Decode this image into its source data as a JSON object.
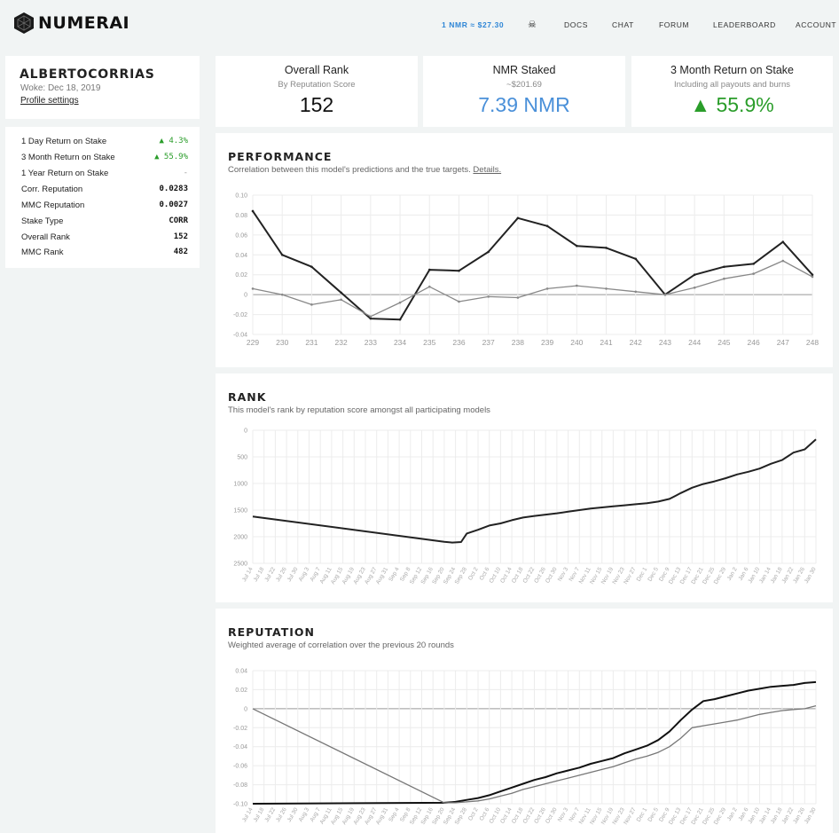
{
  "brand": {
    "name": "NUMERAI"
  },
  "nav": {
    "price": "1 NMR ≈ $27.30",
    "items": [
      "DOCS",
      "CHAT",
      "FORUM",
      "LEADERBOARD",
      "ACCOUNT"
    ]
  },
  "profile": {
    "name": "ALBERTOCORRIAS",
    "woke": "Woke: Dec 18, 2019",
    "settings": "Profile settings"
  },
  "stats": [
    {
      "label": "1 Day Return on Stake",
      "value": "▲ 4.3%",
      "tone": "green"
    },
    {
      "label": "3 Month Return on Stake",
      "value": "▲ 55.9%",
      "tone": "green"
    },
    {
      "label": "1 Year Return on Stake",
      "value": "-",
      "tone": "muted"
    },
    {
      "label": "Corr. Reputation",
      "value": "0.0283",
      "tone": "normal"
    },
    {
      "label": "MMC Reputation",
      "value": "0.0027",
      "tone": "normal"
    },
    {
      "label": "Stake Type",
      "value": "CORR",
      "tone": "normal"
    },
    {
      "label": "Overall Rank",
      "value": "152",
      "tone": "normal"
    },
    {
      "label": "MMC Rank",
      "value": "482",
      "tone": "normal"
    }
  ],
  "kpis": [
    {
      "title": "Overall Rank",
      "sub": "By Reputation Score",
      "value": "152",
      "color": "#111111"
    },
    {
      "title": "NMR Staked",
      "sub": "~$201.69",
      "value": "7.39 NMR",
      "color": "#4a90d9"
    },
    {
      "title": "3 Month Return on Stake",
      "sub": "Including all payouts and burns",
      "value": "▲ 55.9%",
      "color": "#2a9d2a"
    }
  ],
  "performance": {
    "title": "PERFORMANCE",
    "subtitle": "Correlation between this model's predictions and the true targets.",
    "details": "Details."
  },
  "rank": {
    "title": "RANK",
    "subtitle": "This model's rank by reputation score amongst all participating models"
  },
  "reputation": {
    "title": "REPUTATION",
    "subtitle": "Weighted average of correlation over the previous 20 rounds"
  },
  "chart_data": [
    {
      "type": "line",
      "name": "performance",
      "x": [
        229,
        230,
        231,
        232,
        233,
        234,
        235,
        236,
        237,
        238,
        239,
        240,
        241,
        242,
        243,
        244,
        245,
        246,
        247,
        248
      ],
      "ylim": [
        -0.04,
        0.1
      ],
      "yticks": [
        "0.10",
        "0.08",
        "0.06",
        "0.04",
        "0.02",
        "0",
        "-0.02",
        "-0.04"
      ],
      "xticks": [
        "229",
        "230",
        "231",
        "232",
        "233",
        "234",
        "235",
        "236",
        "237",
        "238",
        "239",
        "240",
        "241",
        "242",
        "243",
        "244",
        "245",
        "246",
        "247",
        "248"
      ],
      "series": [
        {
          "color": "#222222",
          "values": [
            0.084,
            0.04,
            0.028,
            0.002,
            -0.024,
            -0.025,
            0.025,
            0.024,
            0.043,
            0.077,
            0.069,
            0.049,
            0.047,
            0.036,
            0.0,
            0.02,
            0.028,
            0.031,
            0.053,
            0.02
          ]
        },
        {
          "color": "#888888",
          "values": [
            0.006,
            0.0,
            -0.01,
            -0.005,
            -0.022,
            -0.008,
            0.008,
            -0.007,
            -0.002,
            -0.003,
            0.006,
            0.009,
            0.006,
            0.003,
            0.0,
            0.007,
            0.016,
            0.021,
            0.034,
            0.018
          ]
        }
      ]
    },
    {
      "type": "line",
      "name": "rank",
      "ylim": [
        0,
        2500
      ],
      "reversed": true,
      "yticks": [
        "0",
        "500",
        "1000",
        "1500",
        "2000",
        "2500"
      ],
      "xticks": [
        "Jul 14",
        "Jul 18",
        "Jul 22",
        "Jul 26",
        "Jul 30",
        "Aug 3",
        "Aug 7",
        "Aug 11",
        "Aug 15",
        "Aug 19",
        "Aug 23",
        "Aug 27",
        "Aug 31",
        "Sep 4",
        "Sep 8",
        "Sep 12",
        "Sep 16",
        "Sep 20",
        "Sep 24",
        "Sep 28",
        "Oct 2",
        "Oct 6",
        "Oct 10",
        "Oct 14",
        "Oct 18",
        "Oct 22",
        "Oct 26",
        "Oct 30",
        "Nov 3",
        "Nov 7",
        "Nov 11",
        "Nov 15",
        "Nov 19",
        "Nov 23",
        "Nov 27",
        "Dec 1",
        "Dec 5",
        "Dec 9",
        "Dec 13",
        "Dec 17",
        "Dec 21",
        "Dec 25",
        "Dec 29",
        "Jan 2",
        "Jan 6",
        "Jan 10",
        "Jan 14",
        "Jan 18",
        "Jan 22",
        "Jan 26",
        "Jan 30"
      ],
      "series": [
        {
          "color": "#222222",
          "x": [
            0,
            17,
            17.7,
            18.5,
            19,
            20,
            21,
            22,
            23,
            24,
            25,
            26,
            27,
            28,
            29,
            30,
            31,
            32,
            33,
            34,
            35,
            36,
            37,
            38,
            39,
            40,
            41,
            42,
            43,
            44,
            45,
            46,
            47,
            48,
            49,
            50
          ],
          "values": [
            1620,
            2095,
            2110,
            2100,
            1940,
            1870,
            1790,
            1750,
            1690,
            1640,
            1610,
            1585,
            1560,
            1530,
            1500,
            1470,
            1450,
            1430,
            1410,
            1390,
            1370,
            1340,
            1290,
            1180,
            1080,
            1010,
            960,
            900,
            830,
            780,
            720,
            630,
            560,
            420,
            360,
            170
          ]
        }
      ]
    },
    {
      "type": "line",
      "name": "reputation",
      "ylim": [
        -0.1,
        0.04
      ],
      "yticks": [
        "0.04",
        "0.02",
        "0",
        "-0.02",
        "-0.04",
        "-0.06",
        "-0.08",
        "-0.10"
      ],
      "xticks": [
        "Jul 14",
        "Jul 18",
        "Jul 22",
        "Jul 26",
        "Jul 30",
        "Aug 3",
        "Aug 7",
        "Aug 11",
        "Aug 15",
        "Aug 19",
        "Aug 23",
        "Aug 27",
        "Aug 31",
        "Sep 4",
        "Sep 8",
        "Sep 12",
        "Sep 16",
        "Sep 20",
        "Sep 24",
        "Sep 28",
        "Oct 2",
        "Oct 6",
        "Oct 10",
        "Oct 14",
        "Oct 18",
        "Oct 22",
        "Oct 26",
        "Oct 30",
        "Nov 3",
        "Nov 7",
        "Nov 11",
        "Nov 15",
        "Nov 19",
        "Nov 23",
        "Nov 27",
        "Dec 1",
        "Dec 5",
        "Dec 9",
        "Dec 13",
        "Dec 17",
        "Dec 21",
        "Dec 25",
        "Dec 29",
        "Jan 2",
        "Jan 6",
        "Jan 10",
        "Jan 14",
        "Jan 18",
        "Jan 22",
        "Jan 26",
        "Jan 30"
      ],
      "series": [
        {
          "color": "#111111",
          "x": [
            0,
            17,
            18,
            19,
            20,
            21,
            22,
            23,
            24,
            25,
            26,
            27,
            28,
            29,
            30,
            31,
            32,
            33,
            34,
            35,
            36,
            37,
            38,
            39,
            40,
            41,
            42,
            43,
            44,
            45,
            46,
            47,
            48,
            49,
            50
          ],
          "values": [
            -0.1,
            -0.099,
            -0.098,
            -0.096,
            -0.094,
            -0.091,
            -0.087,
            -0.083,
            -0.079,
            -0.075,
            -0.072,
            -0.068,
            -0.065,
            -0.062,
            -0.058,
            -0.055,
            -0.052,
            -0.047,
            -0.043,
            -0.039,
            -0.033,
            -0.024,
            -0.012,
            -0.001,
            0.008,
            0.01,
            0.013,
            0.016,
            0.019,
            0.021,
            0.023,
            0.024,
            0.025,
            0.027,
            0.028
          ]
        },
        {
          "color": "#777777",
          "x": [
            0,
            17,
            18,
            19,
            20,
            21,
            22,
            23,
            24,
            25,
            26,
            27,
            28,
            29,
            30,
            31,
            32,
            33,
            34,
            35,
            36,
            37,
            38,
            39,
            40,
            41,
            42,
            43,
            44,
            45,
            46,
            47,
            48,
            49,
            50
          ],
          "values": [
            0.0,
            -0.099,
            -0.099,
            -0.098,
            -0.097,
            -0.095,
            -0.092,
            -0.089,
            -0.085,
            -0.082,
            -0.079,
            -0.076,
            -0.073,
            -0.07,
            -0.067,
            -0.064,
            -0.061,
            -0.057,
            -0.053,
            -0.05,
            -0.046,
            -0.04,
            -0.031,
            -0.02,
            -0.018,
            -0.016,
            -0.014,
            -0.012,
            -0.009,
            -0.006,
            -0.004,
            -0.002,
            -0.001,
            0.0,
            0.003
          ]
        }
      ]
    }
  ]
}
